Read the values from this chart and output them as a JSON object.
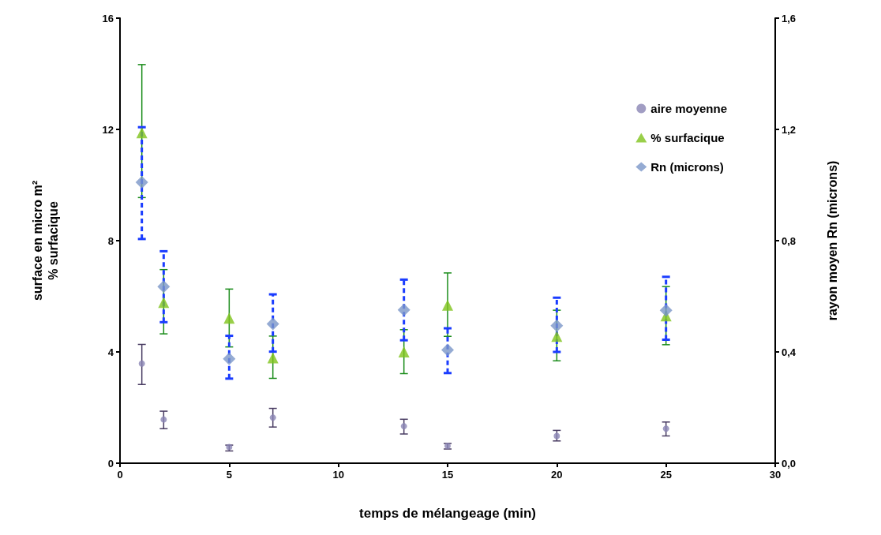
{
  "chart_data": {
    "type": "scatter",
    "xlabel": "temps de mélangeage (min)",
    "ylabel": "surface en micro m²\n% surfacique",
    "y2label": "rayon moyen Rn (microns)",
    "x": [
      1,
      2,
      5,
      7,
      13,
      15,
      20,
      25
    ],
    "xlim": [
      0,
      30
    ],
    "xticks": [
      0,
      5,
      10,
      15,
      20,
      25,
      30
    ],
    "ylim": [
      0,
      16
    ],
    "yticks": [
      0,
      4,
      8,
      12,
      16
    ],
    "y2lim": [
      0,
      1.6
    ],
    "y2ticks": [
      {
        "value": 0,
        "label": "0,0"
      },
      {
        "value": 0.4,
        "label": "0,4"
      },
      {
        "value": 0.8,
        "label": "0,8"
      },
      {
        "value": 1.2,
        "label": "1,2"
      },
      {
        "value": 1.6,
        "label": "1,6"
      }
    ],
    "series": [
      {
        "name": "aire moyenne",
        "color": "#8a84b4",
        "marker": "circle",
        "values": [
          3.58,
          1.57,
          0.58,
          1.64,
          1.33,
          0.62,
          0.98,
          1.24
        ],
        "errors": [
          [
            2.83,
            4.27
          ],
          [
            1.24,
            1.87
          ],
          [
            0.44,
            0.65
          ],
          [
            1.3,
            1.97
          ],
          [
            1.05,
            1.58
          ],
          [
            0.51,
            0.71
          ],
          [
            0.8,
            1.18
          ],
          [
            0.98,
            1.48
          ]
        ]
      },
      {
        "name": "% surfacique",
        "color": "#7fc31c",
        "marker": "triangle",
        "values": [
          11.88,
          5.78,
          5.21,
          3.79,
          4.0,
          5.68,
          4.56,
          5.3
        ],
        "errors": [
          [
            9.55,
            14.33
          ],
          [
            4.65,
            6.96
          ],
          [
            4.18,
            6.26
          ],
          [
            3.05,
            4.57
          ],
          [
            3.22,
            4.8
          ],
          [
            4.56,
            6.84
          ],
          [
            3.68,
            5.5
          ],
          [
            4.26,
            6.35
          ]
        ]
      },
      {
        "name": "Rn (microns)",
        "color": "#7a96c8",
        "marker": "diamond",
        "axis": "y2",
        "values": [
          1.01,
          0.635,
          0.375,
          0.501,
          0.551,
          0.407,
          0.494,
          0.55
        ],
        "errors": [
          [
            0.806,
            1.208
          ],
          [
            0.507,
            0.762
          ],
          [
            0.304,
            0.458
          ],
          [
            0.401,
            0.607
          ],
          [
            0.442,
            0.66
          ],
          [
            0.324,
            0.485
          ],
          [
            0.4,
            0.595
          ],
          [
            0.444,
            0.67
          ]
        ]
      }
    ],
    "legend": "top right",
    "grid": false
  }
}
